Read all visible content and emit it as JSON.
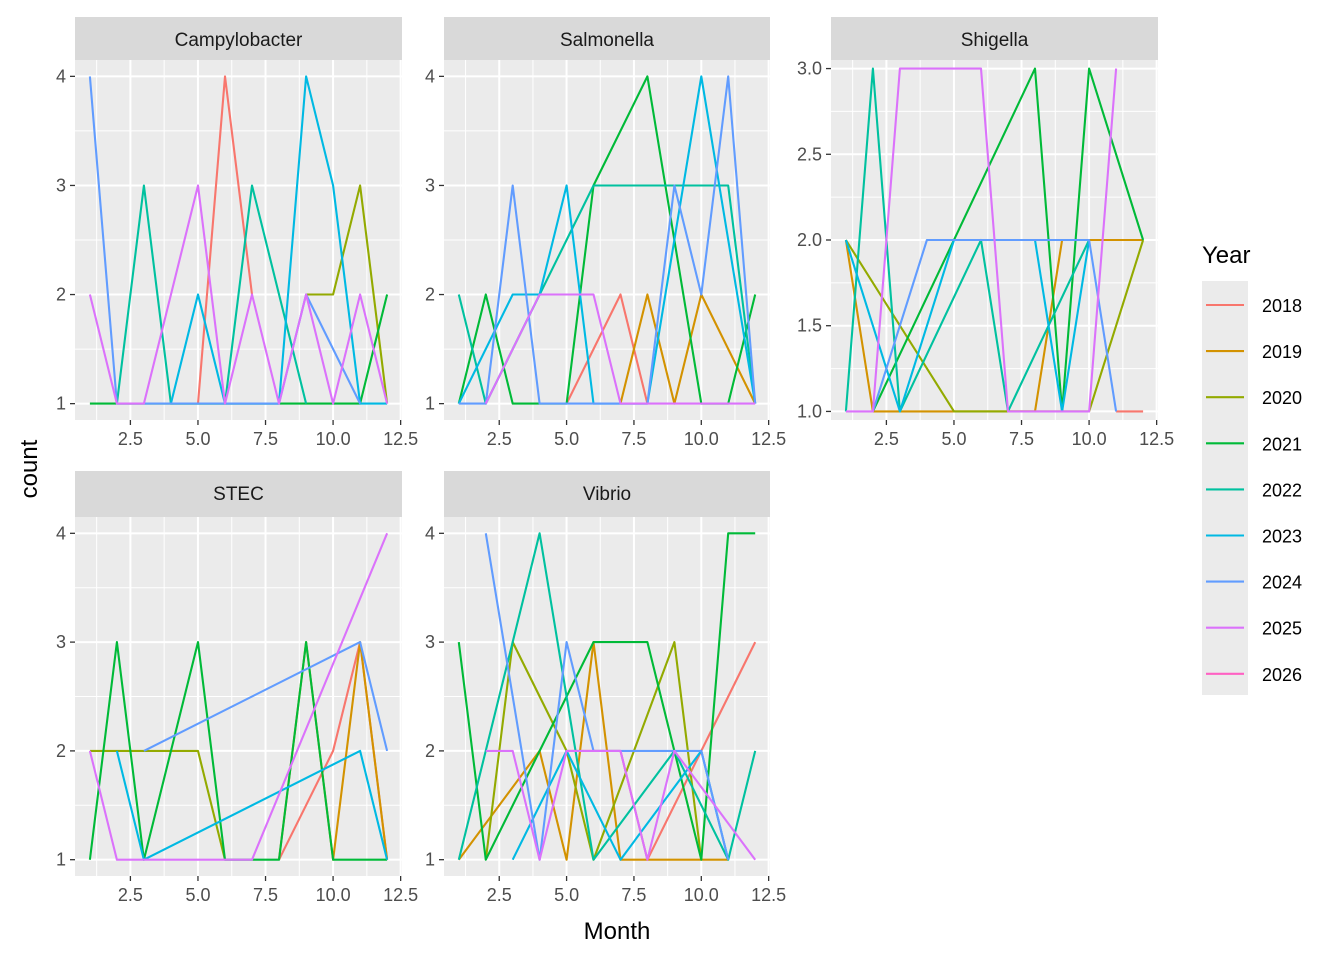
{
  "chart_data": {
    "type": "line",
    "title": "",
    "xlabel": "Month",
    "ylabel": "count",
    "legend": {
      "title": "Year",
      "placement": "right",
      "entries": [
        {
          "name": "2018",
          "color": "#F8766D"
        },
        {
          "name": "2019",
          "color": "#D39200"
        },
        {
          "name": "2020",
          "color": "#93AA00"
        },
        {
          "name": "2021",
          "color": "#00BA38"
        },
        {
          "name": "2022",
          "color": "#00C19F"
        },
        {
          "name": "2023",
          "color": "#00B9E3"
        },
        {
          "name": "2024",
          "color": "#619CFF"
        },
        {
          "name": "2025",
          "color": "#DB72FB"
        },
        {
          "name": "2026",
          "color": "#FF61C3"
        }
      ]
    },
    "panels": [
      {
        "title": "Campylobacter",
        "xlim": [
          0.45,
          12.55
        ],
        "ylim": [
          0.85,
          4.15
        ],
        "x_ticks": [
          2.5,
          5.0,
          7.5,
          10.0,
          12.5
        ],
        "x_tick_labels": [
          "2.5",
          "5.0",
          "7.5",
          "10.0",
          "12.5"
        ],
        "y_ticks": [
          1,
          2,
          3,
          4
        ],
        "y_tick_labels": [
          "1",
          "2",
          "3",
          "4"
        ],
        "series": [
          {
            "name": "2018",
            "x": [
              5,
              6,
              7
            ],
            "y": [
              1,
              4,
              2
            ]
          },
          {
            "name": "2020",
            "x": [
              9,
              10,
              11,
              12
            ],
            "y": [
              2,
              2,
              3,
              1
            ]
          },
          {
            "name": "2021",
            "x": [
              1,
              2,
              11,
              12
            ],
            "y": [
              1,
              1,
              1,
              2
            ]
          },
          {
            "name": "2022",
            "x": [
              2,
              3,
              4,
              6,
              7,
              9
            ],
            "y": [
              1,
              3,
              1,
              1,
              3,
              1
            ]
          },
          {
            "name": "2023",
            "x": [
              4,
              5,
              6,
              8,
              9,
              10,
              11,
              12
            ],
            "y": [
              1,
              2,
              1,
              1,
              4,
              3,
              1,
              1
            ]
          },
          {
            "name": "2024",
            "x": [
              1,
              2,
              8,
              9,
              11
            ],
            "y": [
              4,
              1,
              1,
              2,
              1
            ]
          },
          {
            "name": "2025",
            "x": [
              1,
              2,
              3,
              5,
              6,
              7,
              8,
              9,
              10,
              11,
              12
            ],
            "y": [
              2,
              1,
              1,
              3,
              1,
              2,
              1,
              2,
              1,
              2,
              1
            ]
          }
        ]
      },
      {
        "title": "Salmonella",
        "xlim": [
          0.45,
          12.55
        ],
        "ylim": [
          0.85,
          4.15
        ],
        "x_ticks": [
          2.5,
          5.0,
          7.5,
          10.0,
          12.5
        ],
        "x_tick_labels": [
          "2.5",
          "5.0",
          "7.5",
          "10.0",
          "12.5"
        ],
        "y_ticks": [
          1,
          2,
          3,
          4
        ],
        "y_tick_labels": [
          "1",
          "2",
          "3",
          "4"
        ],
        "series": [
          {
            "name": "2018",
            "x": [
              5,
              7,
              8
            ],
            "y": [
              1,
              2,
              1
            ]
          },
          {
            "name": "2019",
            "x": [
              7,
              8,
              9,
              10,
              12
            ],
            "y": [
              1,
              2,
              1,
              2,
              1
            ]
          },
          {
            "name": "2021",
            "x": [
              1,
              2,
              3,
              5,
              6,
              8,
              10,
              11,
              12
            ],
            "y": [
              1,
              2,
              1,
              1,
              3,
              4,
              1,
              1,
              2
            ]
          },
          {
            "name": "2022",
            "x": [
              1,
              2,
              6,
              11,
              12
            ],
            "y": [
              2,
              1,
              3,
              3,
              1
            ]
          },
          {
            "name": "2023",
            "x": [
              1,
              3,
              4,
              5,
              6,
              8,
              10,
              12
            ],
            "y": [
              1,
              2,
              2,
              3,
              1,
              1,
              4,
              1
            ]
          },
          {
            "name": "2024",
            "x": [
              1,
              2,
              3,
              4,
              8,
              9,
              10,
              11,
              12
            ],
            "y": [
              1,
              1,
              3,
              1,
              1,
              3,
              2,
              4,
              1
            ]
          },
          {
            "name": "2025",
            "x": [
              2,
              4,
              5,
              6,
              7,
              12
            ],
            "y": [
              1,
              2,
              2,
              2,
              1,
              1
            ]
          }
        ]
      },
      {
        "title": "Shigella",
        "xlim": [
          0.45,
          12.55
        ],
        "ylim": [
          0.95,
          3.05
        ],
        "x_ticks": [
          2.5,
          5.0,
          7.5,
          10.0,
          12.5
        ],
        "x_tick_labels": [
          "2.5",
          "5.0",
          "7.5",
          "10.0",
          "12.5"
        ],
        "y_ticks": [
          1.0,
          1.5,
          2.0,
          2.5,
          3.0
        ],
        "y_tick_labels": [
          "1.0",
          "1.5",
          "2.0",
          "2.5",
          "3.0"
        ],
        "series": [
          {
            "name": "2018",
            "x": [
              11,
              12
            ],
            "y": [
              1,
              1
            ]
          },
          {
            "name": "2019",
            "x": [
              1,
              2,
              8,
              9,
              12
            ],
            "y": [
              2,
              1,
              1,
              2,
              2
            ]
          },
          {
            "name": "2020",
            "x": [
              1,
              5,
              7,
              10,
              12
            ],
            "y": [
              2,
              1,
              1,
              1,
              2
            ]
          },
          {
            "name": "2021",
            "x": [
              2,
              8,
              9,
              10,
              12
            ],
            "y": [
              1,
              3,
              1,
              3,
              2
            ]
          },
          {
            "name": "2022",
            "x": [
              1,
              2,
              3,
              6,
              7,
              10
            ],
            "y": [
              1,
              3,
              1,
              2,
              1,
              2
            ]
          },
          {
            "name": "2023",
            "x": [
              1,
              3,
              5,
              8,
              9,
              10
            ],
            "y": [
              2,
              1,
              2,
              2,
              1,
              2
            ]
          },
          {
            "name": "2024",
            "x": [
              2,
              4,
              10,
              11
            ],
            "y": [
              1,
              2,
              2,
              1
            ]
          },
          {
            "name": "2025",
            "x": [
              1,
              2,
              3,
              6,
              7,
              10,
              11
            ],
            "y": [
              1,
              1,
              3,
              3,
              1,
              1,
              3
            ]
          }
        ]
      },
      {
        "title": "STEC",
        "xlim": [
          0.45,
          12.55
        ],
        "ylim": [
          0.85,
          4.15
        ],
        "x_ticks": [
          2.5,
          5.0,
          7.5,
          10.0,
          12.5
        ],
        "x_tick_labels": [
          "2.5",
          "5.0",
          "7.5",
          "10.0",
          "12.5"
        ],
        "y_ticks": [
          1,
          2,
          3,
          4
        ],
        "y_tick_labels": [
          "1",
          "2",
          "3",
          "4"
        ],
        "series": [
          {
            "name": "2018",
            "x": [
              8,
              10,
              11,
              12
            ],
            "y": [
              1,
              2,
              3,
              1
            ]
          },
          {
            "name": "2019",
            "x": [
              8,
              9,
              10,
              11,
              12
            ],
            "y": [
              1,
              3,
              1,
              3,
              1
            ]
          },
          {
            "name": "2020",
            "x": [
              1,
              2,
              5,
              6
            ],
            "y": [
              2,
              2,
              2,
              1
            ]
          },
          {
            "name": "2021",
            "x": [
              1,
              2,
              3,
              5,
              6,
              8,
              9,
              10,
              12
            ],
            "y": [
              1,
              3,
              1,
              3,
              1,
              1,
              3,
              1,
              1
            ]
          },
          {
            "name": "2023",
            "x": [
              2,
              3,
              11,
              12
            ],
            "y": [
              2,
              1,
              2,
              1
            ]
          },
          {
            "name": "2024",
            "x": [
              3,
              11,
              12
            ],
            "y": [
              2,
              3,
              2
            ]
          },
          {
            "name": "2025",
            "x": [
              1,
              2,
              7,
              12
            ],
            "y": [
              2,
              1,
              1,
              4
            ]
          }
        ]
      },
      {
        "title": "Vibrio",
        "xlim": [
          0.45,
          12.55
        ],
        "ylim": [
          0.85,
          4.15
        ],
        "x_ticks": [
          2.5,
          5.0,
          7.5,
          10.0,
          12.5
        ],
        "x_tick_labels": [
          "2.5",
          "5.0",
          "7.5",
          "10.0",
          "12.5"
        ],
        "y_ticks": [
          1,
          2,
          3,
          4
        ],
        "y_tick_labels": [
          "1",
          "2",
          "3",
          "4"
        ],
        "series": [
          {
            "name": "2018",
            "x": [
              5,
              7,
              8,
              10,
              12
            ],
            "y": [
              2,
              2,
              1,
              2,
              3
            ]
          },
          {
            "name": "2019",
            "x": [
              1,
              4,
              5,
              6,
              7,
              9,
              11
            ],
            "y": [
              1,
              2,
              1,
              3,
              1,
              1,
              1
            ]
          },
          {
            "name": "2020",
            "x": [
              2,
              3,
              5,
              6,
              9,
              10
            ],
            "y": [
              1,
              3,
              2,
              1,
              3,
              1
            ]
          },
          {
            "name": "2021",
            "x": [
              1,
              2,
              6,
              8,
              10,
              11,
              12
            ],
            "y": [
              3,
              1,
              3,
              3,
              1,
              4,
              4
            ]
          },
          {
            "name": "2022",
            "x": [
              1,
              4,
              6,
              9,
              11,
              12
            ],
            "y": [
              1,
              4,
              1,
              2,
              1,
              2
            ]
          },
          {
            "name": "2023",
            "x": [
              3,
              5,
              7,
              10,
              11
            ],
            "y": [
              1,
              2,
              1,
              2,
              1
            ]
          },
          {
            "name": "2024",
            "x": [
              2,
              4,
              5,
              6,
              10,
              11
            ],
            "y": [
              4,
              1,
              3,
              2,
              2,
              1
            ]
          },
          {
            "name": "2025",
            "x": [
              2,
              3,
              4,
              5,
              7,
              8,
              9,
              12
            ],
            "y": [
              2,
              2,
              1,
              2,
              2,
              1,
              2,
              1
            ]
          }
        ]
      }
    ]
  }
}
